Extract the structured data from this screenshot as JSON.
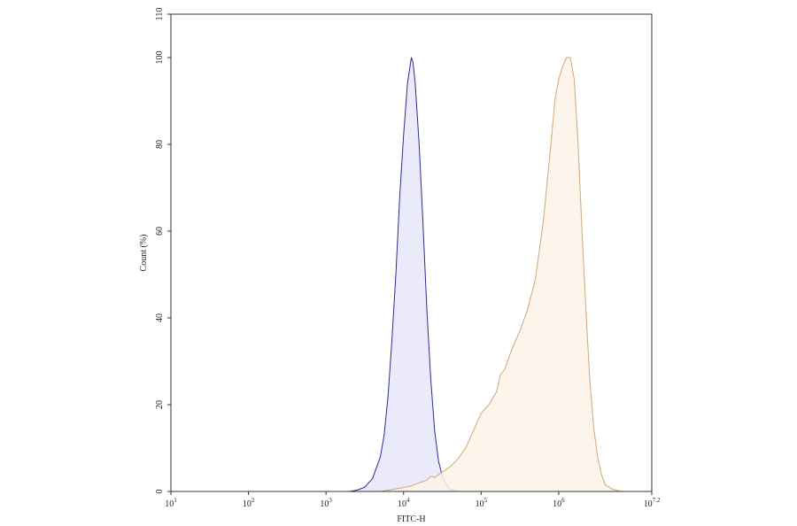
{
  "chart_data": {
    "type": "area",
    "title": "",
    "xlabel": "FITC-H",
    "ylabel": "Count (%)",
    "x_scale": "log10",
    "xlim_exponent": [
      1,
      7.2
    ],
    "ylim": [
      0,
      110
    ],
    "x_tick_exponents": [
      1,
      2,
      3,
      4,
      5,
      6,
      7.2
    ],
    "x_tick_labels": [
      {
        "base": "10",
        "exp": "1"
      },
      {
        "base": "10",
        "exp": "2"
      },
      {
        "base": "10",
        "exp": "3"
      },
      {
        "base": "10",
        "exp": "4"
      },
      {
        "base": "10",
        "exp": "5"
      },
      {
        "base": "10",
        "exp": "6"
      },
      {
        "base": "10",
        "exp": "7.2"
      }
    ],
    "y_ticks": [
      0,
      20,
      40,
      60,
      80,
      100,
      110
    ],
    "y_tick_labels": [
      "0",
      "20",
      "40",
      "60",
      "80",
      "100",
      "110"
    ],
    "grid": false,
    "legend": "none",
    "series": [
      {
        "stroke": "#2b2f8c",
        "fill": "#e6e6fa",
        "points": [
          [
            1,
            0
          ],
          [
            3.3,
            0
          ],
          [
            3.4,
            0.3
          ],
          [
            3.5,
            1
          ],
          [
            3.6,
            3
          ],
          [
            3.7,
            8
          ],
          [
            3.75,
            13
          ],
          [
            3.8,
            22
          ],
          [
            3.85,
            35
          ],
          [
            3.9,
            50
          ],
          [
            3.95,
            68
          ],
          [
            4.0,
            82
          ],
          [
            4.05,
            94
          ],
          [
            4.1,
            100
          ],
          [
            4.12,
            99
          ],
          [
            4.15,
            94
          ],
          [
            4.2,
            80
          ],
          [
            4.25,
            62
          ],
          [
            4.3,
            42
          ],
          [
            4.35,
            26
          ],
          [
            4.4,
            14
          ],
          [
            4.45,
            7
          ],
          [
            4.5,
            3.5
          ],
          [
            4.55,
            1.5
          ],
          [
            4.6,
            0.5
          ],
          [
            4.7,
            0
          ],
          [
            7.2,
            0
          ]
        ]
      },
      {
        "stroke": "#d2a679",
        "fill": "#fdf3e8",
        "points": [
          [
            1,
            0
          ],
          [
            3.7,
            0
          ],
          [
            3.8,
            0.3
          ],
          [
            3.9,
            0.6
          ],
          [
            4.0,
            0.9
          ],
          [
            4.1,
            1.3
          ],
          [
            4.2,
            2
          ],
          [
            4.3,
            2.6
          ],
          [
            4.35,
            3.5
          ],
          [
            4.4,
            3.2
          ],
          [
            4.5,
            4.5
          ],
          [
            4.6,
            5.7
          ],
          [
            4.7,
            7.5
          ],
          [
            4.8,
            10
          ],
          [
            4.9,
            14
          ],
          [
            5.0,
            18
          ],
          [
            5.1,
            20
          ],
          [
            5.2,
            23
          ],
          [
            5.25,
            27
          ],
          [
            5.3,
            28
          ],
          [
            5.4,
            33
          ],
          [
            5.5,
            37
          ],
          [
            5.6,
            42
          ],
          [
            5.7,
            49
          ],
          [
            5.8,
            62
          ],
          [
            5.9,
            80
          ],
          [
            5.95,
            90
          ],
          [
            6.0,
            95
          ],
          [
            6.05,
            98
          ],
          [
            6.1,
            100
          ],
          [
            6.15,
            100
          ],
          [
            6.2,
            95
          ],
          [
            6.25,
            80
          ],
          [
            6.3,
            60
          ],
          [
            6.35,
            42
          ],
          [
            6.4,
            26
          ],
          [
            6.45,
            15
          ],
          [
            6.5,
            8
          ],
          [
            6.55,
            4
          ],
          [
            6.6,
            1.5
          ],
          [
            6.7,
            0.5
          ],
          [
            6.8,
            0
          ],
          [
            7.2,
            0
          ]
        ]
      }
    ]
  }
}
